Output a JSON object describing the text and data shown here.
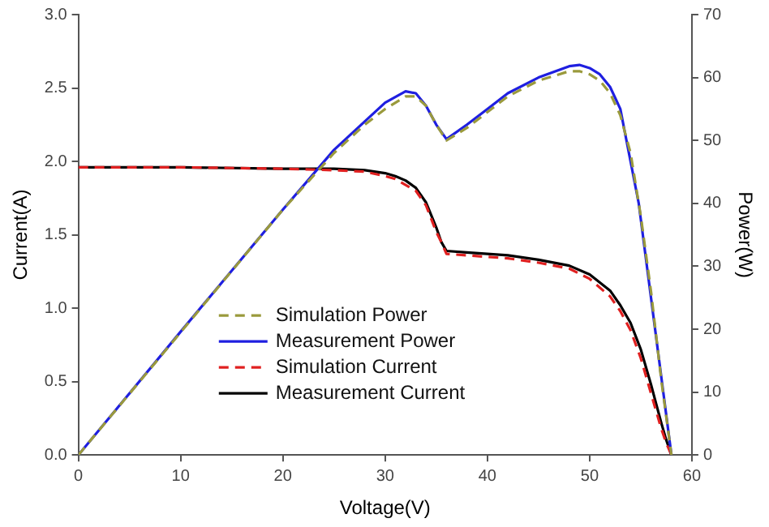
{
  "chart_data": {
    "type": "line",
    "xlabel": "Voltage(V)",
    "ylabel": "Current(A)",
    "y2label": "Power(W)",
    "xlim": [
      0,
      60
    ],
    "xticks": [
      0,
      10,
      20,
      30,
      40,
      50,
      60
    ],
    "ylim": [
      0,
      3
    ],
    "yticks": [
      {
        "value": 0,
        "label": "0.0"
      },
      {
        "value": 0.5,
        "label": "0.5"
      },
      {
        "value": 1,
        "label": "1.0"
      },
      {
        "value": 1.5,
        "label": "1.5"
      },
      {
        "value": 2,
        "label": "2.0"
      },
      {
        "value": 2.5,
        "label": "2.5"
      },
      {
        "value": 3,
        "label": "3.0"
      }
    ],
    "y2lim": [
      0,
      70
    ],
    "y2ticks": [
      0,
      10,
      20,
      30,
      40,
      50,
      60,
      70
    ],
    "grid": false,
    "legend": "bottom",
    "marker": "none",
    "series": [
      {
        "name": "Simulation Power",
        "color": "#9a9a3c",
        "axis": "y2",
        "line_style": "dashed",
        "x": [
          0,
          10,
          20,
          25,
          28,
          30,
          32,
          33,
          34,
          35,
          36,
          38,
          40,
          42,
          45,
          48,
          49,
          50,
          51,
          52,
          53,
          54,
          55,
          56,
          57,
          58
        ],
        "values": [
          0,
          19.5,
          39,
          48,
          52.5,
          55,
          57,
          57,
          55.5,
          52.5,
          50,
          52,
          54.5,
          57,
          59.5,
          61,
          61,
          60.5,
          59.5,
          57.5,
          54,
          48,
          38,
          26,
          12,
          0
        ]
      },
      {
        "name": "Measurement Power",
        "color": "#1f1fe0",
        "axis": "y2",
        "line_style": "solid",
        "x": [
          0,
          10,
          20,
          25,
          28,
          30,
          32,
          33,
          34,
          35,
          36,
          38,
          40,
          42,
          45,
          48,
          49,
          50,
          51,
          52,
          53,
          53.6,
          54.8,
          55.6,
          56.4,
          57.2,
          58
        ],
        "values": [
          0,
          19.6,
          39,
          48.5,
          53,
          56,
          57.8,
          57.5,
          55.5,
          52.5,
          50.2,
          52.5,
          55,
          57.5,
          60,
          61.8,
          62,
          61.5,
          60.5,
          58.5,
          55,
          50,
          40,
          30,
          20,
          10,
          0
        ]
      },
      {
        "name": "Simulation Current",
        "color": "#e02020",
        "axis": "y",
        "line_style": "dashed",
        "x": [
          0,
          10,
          20,
          25,
          28,
          30,
          31,
          32,
          33,
          34,
          35,
          35.5,
          36,
          38,
          40,
          42,
          45,
          48,
          50,
          52,
          53,
          54,
          55,
          56,
          56.5,
          57,
          57.5,
          58
        ],
        "values": [
          1.96,
          1.96,
          1.95,
          1.94,
          1.93,
          1.9,
          1.88,
          1.84,
          1.8,
          1.7,
          1.52,
          1.45,
          1.37,
          1.36,
          1.35,
          1.34,
          1.31,
          1.27,
          1.2,
          1.08,
          0.98,
          0.85,
          0.66,
          0.42,
          0.3,
          0.18,
          0.08,
          0
        ]
      },
      {
        "name": "Measurement Current",
        "color": "#000000",
        "axis": "y",
        "line_style": "solid",
        "x": [
          0,
          10,
          20,
          25,
          28,
          30,
          31,
          32,
          33,
          34,
          35,
          35.5,
          36,
          38,
          40,
          42,
          45,
          48,
          50,
          52,
          53,
          54,
          55,
          56,
          56.5,
          57,
          57.5,
          58
        ],
        "values": [
          1.96,
          1.96,
          1.95,
          1.95,
          1.94,
          1.92,
          1.9,
          1.87,
          1.82,
          1.72,
          1.55,
          1.45,
          1.39,
          1.38,
          1.37,
          1.36,
          1.33,
          1.29,
          1.23,
          1.12,
          1.02,
          0.9,
          0.72,
          0.48,
          0.35,
          0.22,
          0.1,
          0
        ]
      }
    ]
  }
}
